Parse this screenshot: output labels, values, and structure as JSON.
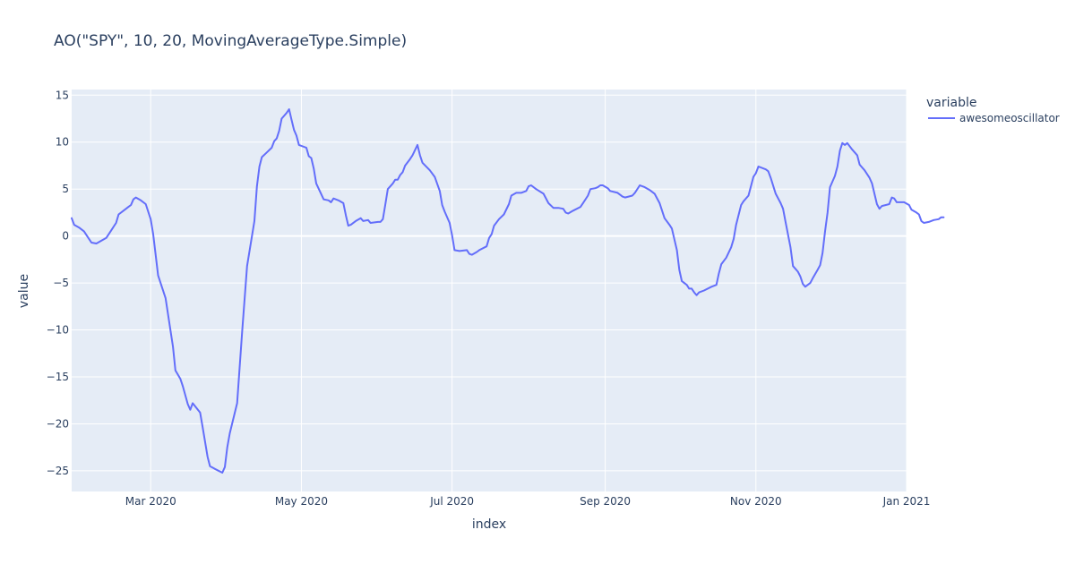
{
  "chart_data": {
    "type": "line",
    "title": "AO(\"SPY\", 10, 20, MovingAverageType.Simple)",
    "xlabel": "index",
    "ylabel": "value",
    "legend": {
      "title": "variable",
      "placement": "right"
    },
    "xlim": [
      "2020-01-29",
      "2021-01-01"
    ],
    "ylim": [
      -27.2,
      15.6
    ],
    "x_ticks": [
      {
        "date": "2020-03-01",
        "label": "Mar 2020"
      },
      {
        "date": "2020-05-01",
        "label": "May 2020"
      },
      {
        "date": "2020-07-01",
        "label": "Jul 2020"
      },
      {
        "date": "2020-09-01",
        "label": "Sep 2020"
      },
      {
        "date": "2020-11-01",
        "label": "Nov 2020"
      },
      {
        "date": "2021-01-01",
        "label": "Jan 2021"
      }
    ],
    "y_ticks": [
      15,
      10,
      5,
      0,
      -5,
      -10,
      -15,
      -20,
      -25
    ],
    "y_tick_labels": [
      "15",
      "10",
      "5",
      "0",
      "−5",
      "−10",
      "−15",
      "−20",
      "−25"
    ],
    "grid": true,
    "series": [
      {
        "name": "awesomeoscillator",
        "color": "#636efa",
        "points": [
          [
            "2020-01-29",
            1.9
          ],
          [
            "2020-01-30",
            1.2
          ],
          [
            "2020-02-01",
            0.9
          ],
          [
            "2020-02-03",
            0.5
          ],
          [
            "2020-02-05",
            -0.3
          ],
          [
            "2020-02-06",
            -0.7
          ],
          [
            "2020-02-08",
            -0.8
          ],
          [
            "2020-02-10",
            -0.5
          ],
          [
            "2020-02-12",
            -0.2
          ],
          [
            "2020-02-14",
            0.6
          ],
          [
            "2020-02-16",
            1.4
          ],
          [
            "2020-02-17",
            2.3
          ],
          [
            "2020-02-19",
            2.7
          ],
          [
            "2020-02-21",
            3.1
          ],
          [
            "2020-02-22",
            3.3
          ],
          [
            "2020-02-23",
            3.9
          ],
          [
            "2020-02-24",
            4.1
          ],
          [
            "2020-02-26",
            3.8
          ],
          [
            "2020-02-28",
            3.4
          ],
          [
            "2020-03-01",
            1.8
          ],
          [
            "2020-03-02",
            0.2
          ],
          [
            "2020-03-04",
            -4.2
          ],
          [
            "2020-03-07",
            -6.6
          ],
          [
            "2020-03-10",
            -11.8
          ],
          [
            "2020-03-11",
            -14.3
          ],
          [
            "2020-03-13",
            -15.2
          ],
          [
            "2020-03-14",
            -16.0
          ],
          [
            "2020-03-16",
            -17.9
          ],
          [
            "2020-03-17",
            -18.5
          ],
          [
            "2020-03-18",
            -17.8
          ],
          [
            "2020-03-21",
            -18.8
          ],
          [
            "2020-03-22",
            -20.3
          ],
          [
            "2020-03-24",
            -23.5
          ],
          [
            "2020-03-25",
            -24.5
          ],
          [
            "2020-03-27",
            -24.8
          ],
          [
            "2020-03-30",
            -25.2
          ],
          [
            "2020-03-31",
            -24.6
          ],
          [
            "2020-04-01",
            -22.5
          ],
          [
            "2020-04-02",
            -21.0
          ],
          [
            "2020-04-05",
            -17.8
          ],
          [
            "2020-04-06",
            -14.0
          ],
          [
            "2020-04-07",
            -10.2
          ],
          [
            "2020-04-09",
            -3.2
          ],
          [
            "2020-04-12",
            1.6
          ],
          [
            "2020-04-13",
            5.3
          ],
          [
            "2020-04-14",
            7.4
          ],
          [
            "2020-04-15",
            8.4
          ],
          [
            "2020-04-17",
            8.9
          ],
          [
            "2020-04-19",
            9.4
          ],
          [
            "2020-04-20",
            10.1
          ],
          [
            "2020-04-21",
            10.4
          ],
          [
            "2020-04-22",
            11.2
          ],
          [
            "2020-04-23",
            12.5
          ],
          [
            "2020-04-25",
            13.1
          ],
          [
            "2020-04-26",
            13.5
          ],
          [
            "2020-04-27",
            12.4
          ],
          [
            "2020-04-28",
            11.3
          ],
          [
            "2020-04-29",
            10.7
          ],
          [
            "2020-04-30",
            9.7
          ],
          [
            "2020-05-03",
            9.4
          ],
          [
            "2020-05-04",
            8.5
          ],
          [
            "2020-05-05",
            8.3
          ],
          [
            "2020-05-06",
            7.2
          ],
          [
            "2020-05-07",
            5.6
          ],
          [
            "2020-05-10",
            3.9
          ],
          [
            "2020-05-12",
            3.8
          ],
          [
            "2020-05-13",
            3.6
          ],
          [
            "2020-05-14",
            4.0
          ],
          [
            "2020-05-16",
            3.8
          ],
          [
            "2020-05-18",
            3.5
          ],
          [
            "2020-05-19",
            2.2
          ],
          [
            "2020-05-20",
            1.1
          ],
          [
            "2020-05-21",
            1.2
          ],
          [
            "2020-05-23",
            1.6
          ],
          [
            "2020-05-25",
            1.9
          ],
          [
            "2020-05-26",
            1.6
          ],
          [
            "2020-05-28",
            1.7
          ],
          [
            "2020-05-29",
            1.4
          ],
          [
            "2020-06-01",
            1.5
          ],
          [
            "2020-06-02",
            1.5
          ],
          [
            "2020-06-03",
            1.8
          ],
          [
            "2020-06-04",
            3.4
          ],
          [
            "2020-06-05",
            5.0
          ],
          [
            "2020-06-07",
            5.6
          ],
          [
            "2020-06-08",
            6.0
          ],
          [
            "2020-06-09",
            6.0
          ],
          [
            "2020-06-10",
            6.5
          ],
          [
            "2020-06-11",
            6.8
          ],
          [
            "2020-06-12",
            7.5
          ],
          [
            "2020-06-14",
            8.2
          ],
          [
            "2020-06-15",
            8.6
          ],
          [
            "2020-06-17",
            9.7
          ],
          [
            "2020-06-18",
            8.6
          ],
          [
            "2020-06-19",
            7.8
          ],
          [
            "2020-06-22",
            7.0
          ],
          [
            "2020-06-24",
            6.3
          ],
          [
            "2020-06-26",
            4.8
          ],
          [
            "2020-06-27",
            3.3
          ],
          [
            "2020-06-28",
            2.6
          ],
          [
            "2020-06-30",
            1.4
          ],
          [
            "2020-07-01",
            0.1
          ],
          [
            "2020-07-02",
            -1.5
          ],
          [
            "2020-07-04",
            -1.6
          ],
          [
            "2020-07-07",
            -1.5
          ],
          [
            "2020-07-08",
            -1.9
          ],
          [
            "2020-07-09",
            -2.0
          ],
          [
            "2020-07-11",
            -1.7
          ],
          [
            "2020-07-12",
            -1.5
          ],
          [
            "2020-07-15",
            -1.1
          ],
          [
            "2020-07-16",
            -0.2
          ],
          [
            "2020-07-17",
            0.2
          ],
          [
            "2020-07-18",
            1.1
          ],
          [
            "2020-07-20",
            1.8
          ],
          [
            "2020-07-22",
            2.3
          ],
          [
            "2020-07-24",
            3.4
          ],
          [
            "2020-07-25",
            4.3
          ],
          [
            "2020-07-27",
            4.6
          ],
          [
            "2020-07-29",
            4.6
          ],
          [
            "2020-07-31",
            4.8
          ],
          [
            "2020-08-01",
            5.3
          ],
          [
            "2020-08-02",
            5.4
          ],
          [
            "2020-08-04",
            5.0
          ],
          [
            "2020-08-07",
            4.5
          ],
          [
            "2020-08-09",
            3.5
          ],
          [
            "2020-08-11",
            3.0
          ],
          [
            "2020-08-13",
            3.0
          ],
          [
            "2020-08-15",
            2.9
          ],
          [
            "2020-08-16",
            2.5
          ],
          [
            "2020-08-17",
            2.4
          ],
          [
            "2020-08-19",
            2.7
          ],
          [
            "2020-08-22",
            3.1
          ],
          [
            "2020-08-23",
            3.5
          ],
          [
            "2020-08-25",
            4.3
          ],
          [
            "2020-08-26",
            5.0
          ],
          [
            "2020-08-28",
            5.1
          ],
          [
            "2020-08-29",
            5.2
          ],
          [
            "2020-08-30",
            5.4
          ],
          [
            "2020-08-31",
            5.4
          ],
          [
            "2020-09-02",
            5.1
          ],
          [
            "2020-09-03",
            4.8
          ],
          [
            "2020-09-06",
            4.6
          ],
          [
            "2020-09-08",
            4.2
          ],
          [
            "2020-09-09",
            4.1
          ],
          [
            "2020-09-12",
            4.3
          ],
          [
            "2020-09-13",
            4.6
          ],
          [
            "2020-09-15",
            5.4
          ],
          [
            "2020-09-17",
            5.2
          ],
          [
            "2020-09-19",
            4.9
          ],
          [
            "2020-09-21",
            4.5
          ],
          [
            "2020-09-23",
            3.5
          ],
          [
            "2020-09-25",
            1.9
          ],
          [
            "2020-09-27",
            1.2
          ],
          [
            "2020-09-28",
            0.8
          ],
          [
            "2020-09-30",
            -1.5
          ],
          [
            "2020-10-01",
            -3.6
          ],
          [
            "2020-10-02",
            -4.8
          ],
          [
            "2020-10-04",
            -5.2
          ],
          [
            "2020-10-05",
            -5.6
          ],
          [
            "2020-10-06",
            -5.6
          ],
          [
            "2020-10-07",
            -6.0
          ],
          [
            "2020-10-08",
            -6.3
          ],
          [
            "2020-10-09",
            -6.0
          ],
          [
            "2020-10-11",
            -5.8
          ],
          [
            "2020-10-14",
            -5.4
          ],
          [
            "2020-10-16",
            -5.2
          ],
          [
            "2020-10-17",
            -4.0
          ],
          [
            "2020-10-18",
            -3.0
          ],
          [
            "2020-10-20",
            -2.3
          ],
          [
            "2020-10-22",
            -1.2
          ],
          [
            "2020-10-23",
            -0.3
          ],
          [
            "2020-10-24",
            1.2
          ],
          [
            "2020-10-26",
            3.3
          ],
          [
            "2020-10-27",
            3.7
          ],
          [
            "2020-10-29",
            4.3
          ],
          [
            "2020-10-31",
            6.3
          ],
          [
            "2020-11-01",
            6.7
          ],
          [
            "2020-11-02",
            7.4
          ],
          [
            "2020-11-05",
            7.1
          ],
          [
            "2020-11-06",
            6.9
          ],
          [
            "2020-11-07",
            6.2
          ],
          [
            "2020-11-09",
            4.5
          ],
          [
            "2020-11-11",
            3.5
          ],
          [
            "2020-11-12",
            2.9
          ],
          [
            "2020-11-13",
            1.5
          ],
          [
            "2020-11-15",
            -1.2
          ],
          [
            "2020-11-16",
            -3.2
          ],
          [
            "2020-11-18",
            -3.8
          ],
          [
            "2020-11-19",
            -4.3
          ],
          [
            "2020-11-20",
            -5.1
          ],
          [
            "2020-11-21",
            -5.4
          ],
          [
            "2020-11-23",
            -5.0
          ],
          [
            "2020-11-24",
            -4.5
          ],
          [
            "2020-11-26",
            -3.6
          ],
          [
            "2020-11-27",
            -3.1
          ],
          [
            "2020-11-28",
            -1.8
          ],
          [
            "2020-11-29",
            0.5
          ],
          [
            "2020-11-30",
            2.5
          ],
          [
            "2020-12-01",
            5.2
          ],
          [
            "2020-12-03",
            6.4
          ],
          [
            "2020-12-04",
            7.4
          ],
          [
            "2020-12-05",
            9.1
          ],
          [
            "2020-12-06",
            9.9
          ],
          [
            "2020-12-07",
            9.7
          ],
          [
            "2020-12-08",
            9.9
          ],
          [
            "2020-12-10",
            9.2
          ],
          [
            "2020-12-12",
            8.6
          ],
          [
            "2020-12-13",
            7.6
          ],
          [
            "2020-12-15",
            7.0
          ],
          [
            "2020-12-17",
            6.2
          ],
          [
            "2020-12-18",
            5.6
          ],
          [
            "2020-12-20",
            3.4
          ],
          [
            "2020-12-21",
            2.9
          ],
          [
            "2020-12-22",
            3.2
          ],
          [
            "2020-12-25",
            3.4
          ],
          [
            "2020-12-26",
            4.1
          ],
          [
            "2020-12-27",
            4.0
          ],
          [
            "2020-12-28",
            3.6
          ],
          [
            "2020-12-31",
            3.6
          ],
          [
            "2021-01-02",
            3.3
          ],
          [
            "2021-01-03",
            2.8
          ],
          [
            "2021-01-05",
            2.5
          ],
          [
            "2021-01-06",
            2.3
          ],
          [
            "2021-01-07",
            1.6
          ],
          [
            "2021-01-08",
            1.4
          ],
          [
            "2021-01-10",
            1.5
          ],
          [
            "2021-01-12",
            1.7
          ],
          [
            "2021-01-14",
            1.8
          ],
          [
            "2021-01-15",
            2.0
          ],
          [
            "2021-01-16",
            2.0
          ]
        ]
      }
    ]
  }
}
